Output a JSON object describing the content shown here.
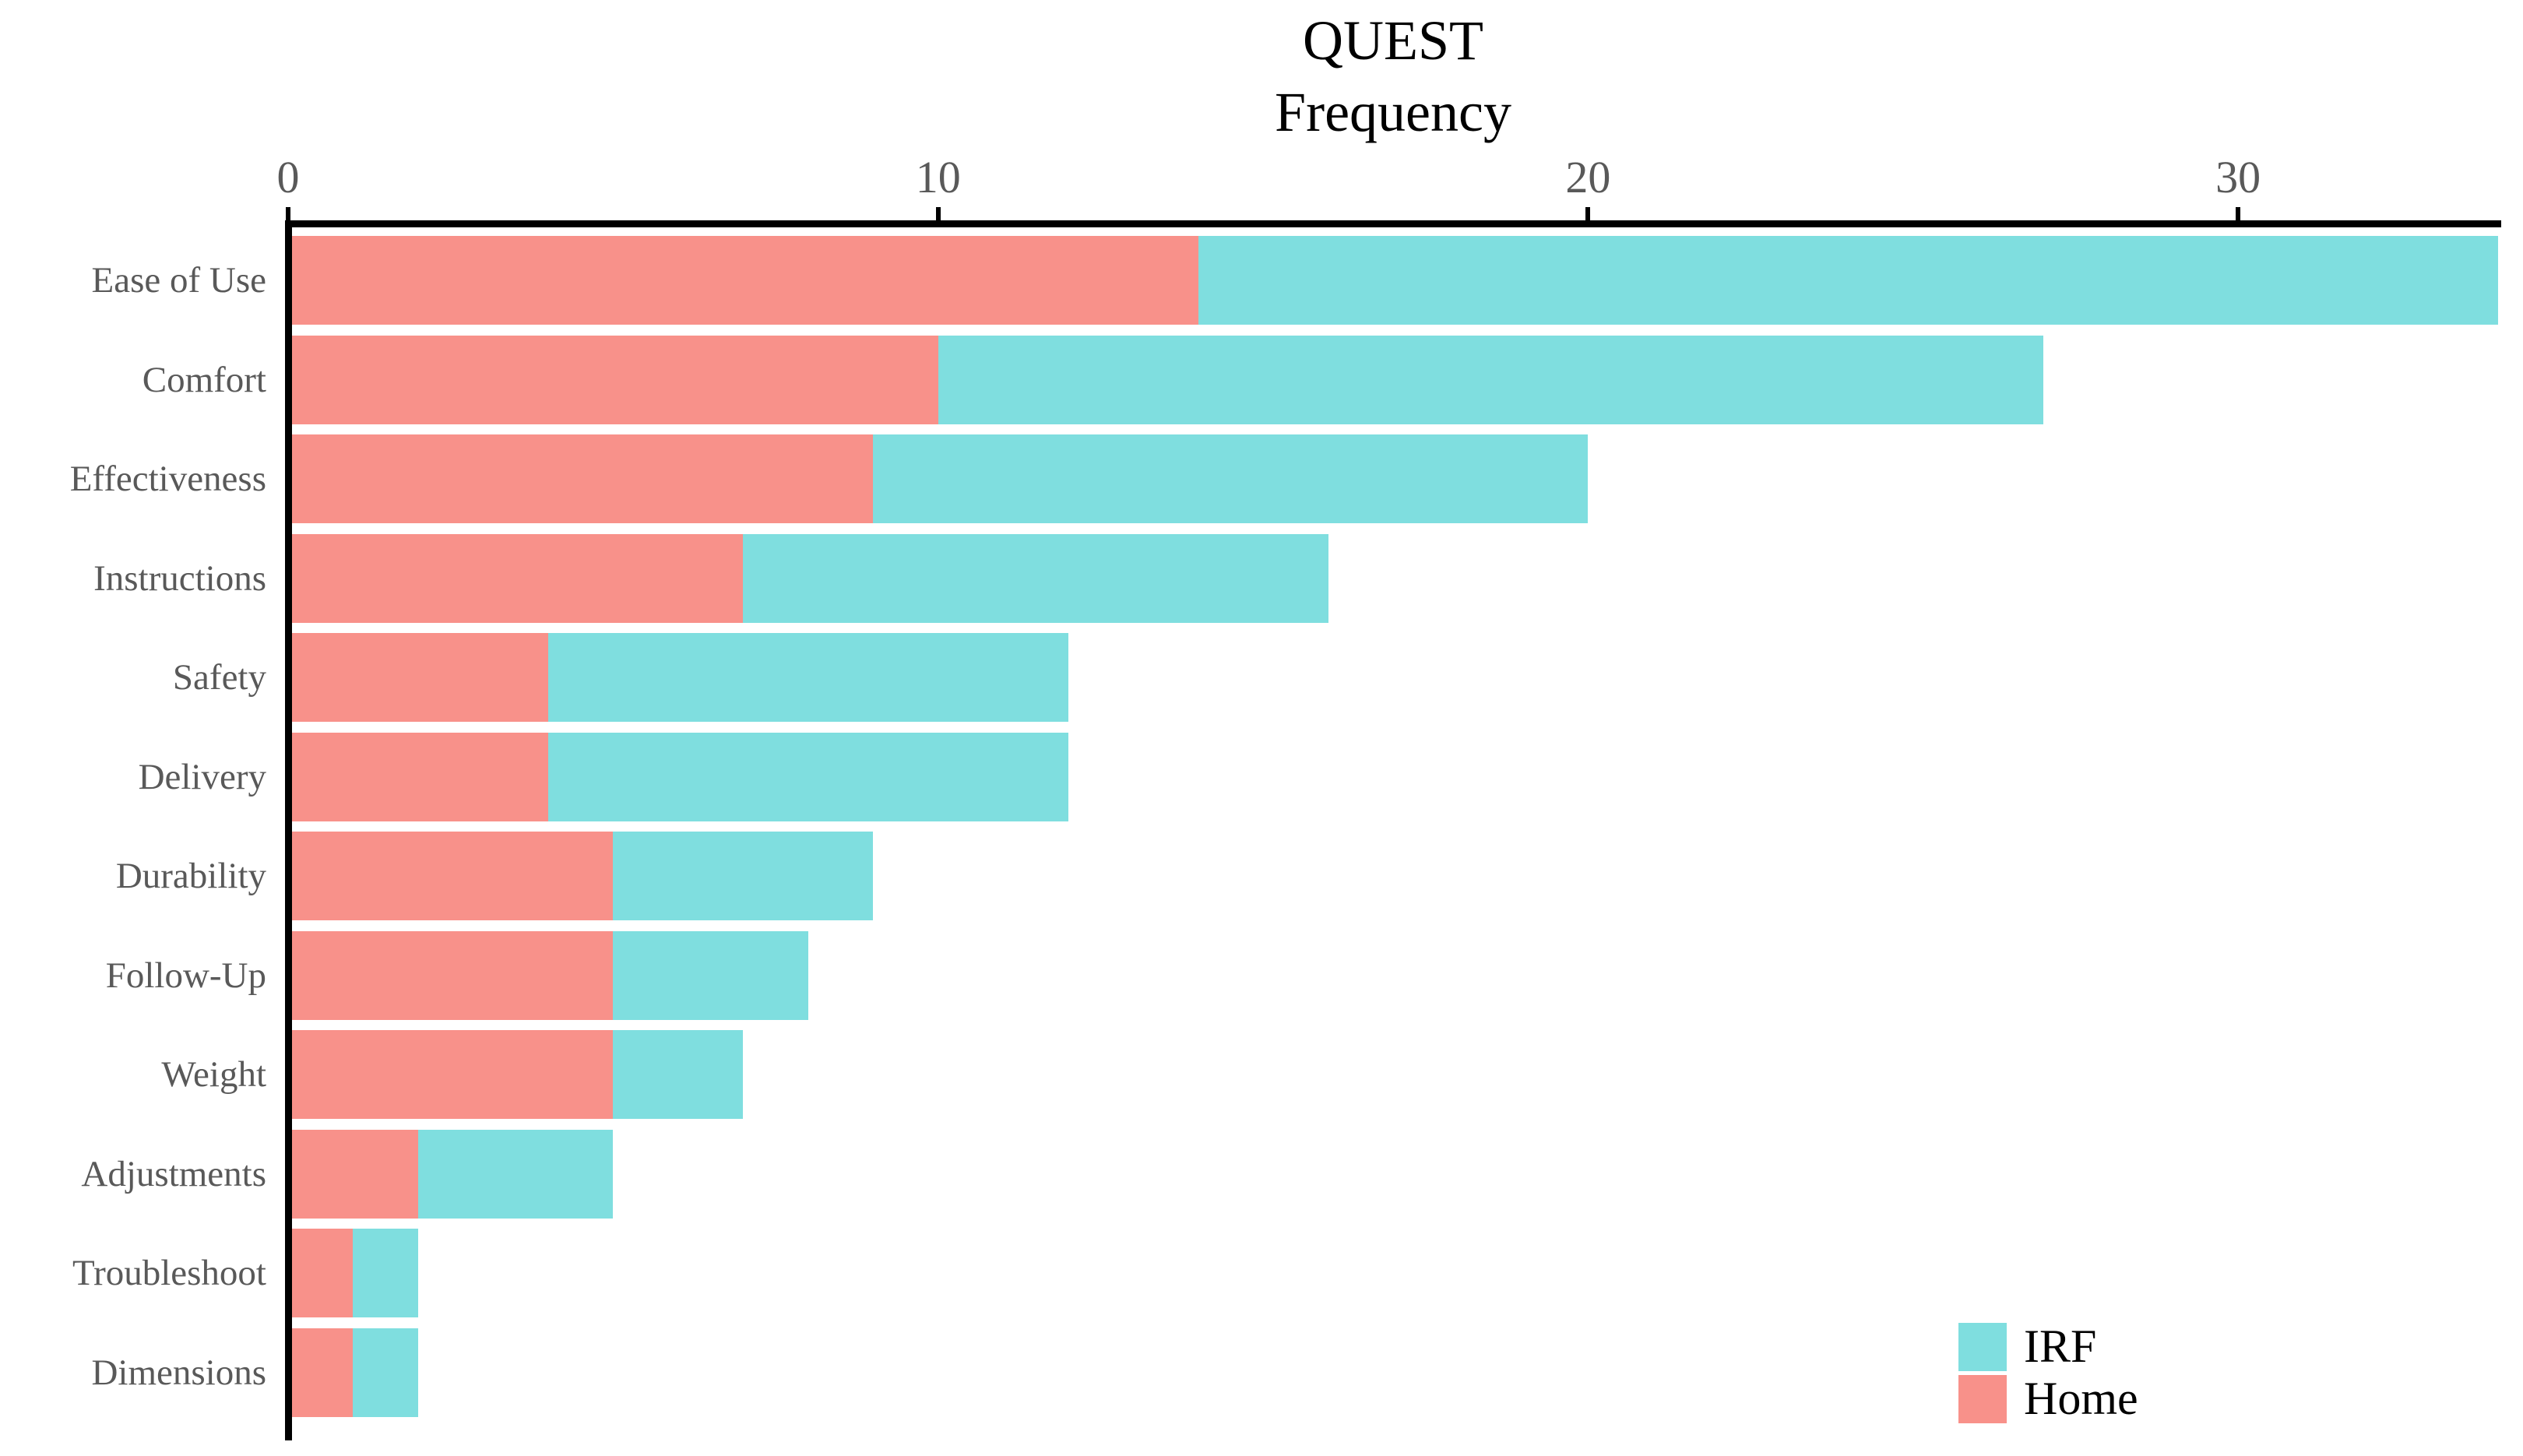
{
  "title": {
    "line1": "QUEST",
    "line2": "Frequency"
  },
  "chart_data": {
    "type": "bar",
    "orientation": "horizontal",
    "stacked": true,
    "title": "QUEST Frequency",
    "categories": [
      "Ease of Use",
      "Comfort",
      "Effectiveness",
      "Instructions",
      "Safety",
      "Delivery",
      "Durability",
      "Follow-Up",
      "Weight",
      "Adjustments",
      "Troubleshoot",
      "Dimensions"
    ],
    "series": [
      {
        "name": "Home",
        "color": "#F8918A",
        "values": [
          14,
          10,
          9,
          7,
          4,
          4,
          5,
          5,
          5,
          2,
          1,
          1
        ]
      },
      {
        "name": "IRF",
        "color": "#7FDEDF",
        "values": [
          20,
          17,
          11,
          9,
          8,
          8,
          4,
          3,
          2,
          3,
          1,
          1
        ]
      }
    ],
    "totals": [
      34,
      27,
      20,
      16,
      12,
      12,
      9,
      8,
      7,
      5,
      2,
      2
    ],
    "x_tick_values": [
      0,
      10,
      20,
      30
    ],
    "x_tick_labels": [
      "0",
      "10",
      "20",
      "30"
    ],
    "xlim": [
      0,
      34
    ],
    "grid": false,
    "legend_position": "bottom-right",
    "axis_color": "#000000",
    "tick_label_color": "#595959",
    "category_label_color": "#595959"
  },
  "legend": {
    "items": [
      {
        "label": "IRF",
        "color": "#7FDEDF"
      },
      {
        "label": "Home",
        "color": "#F8918A"
      }
    ]
  }
}
